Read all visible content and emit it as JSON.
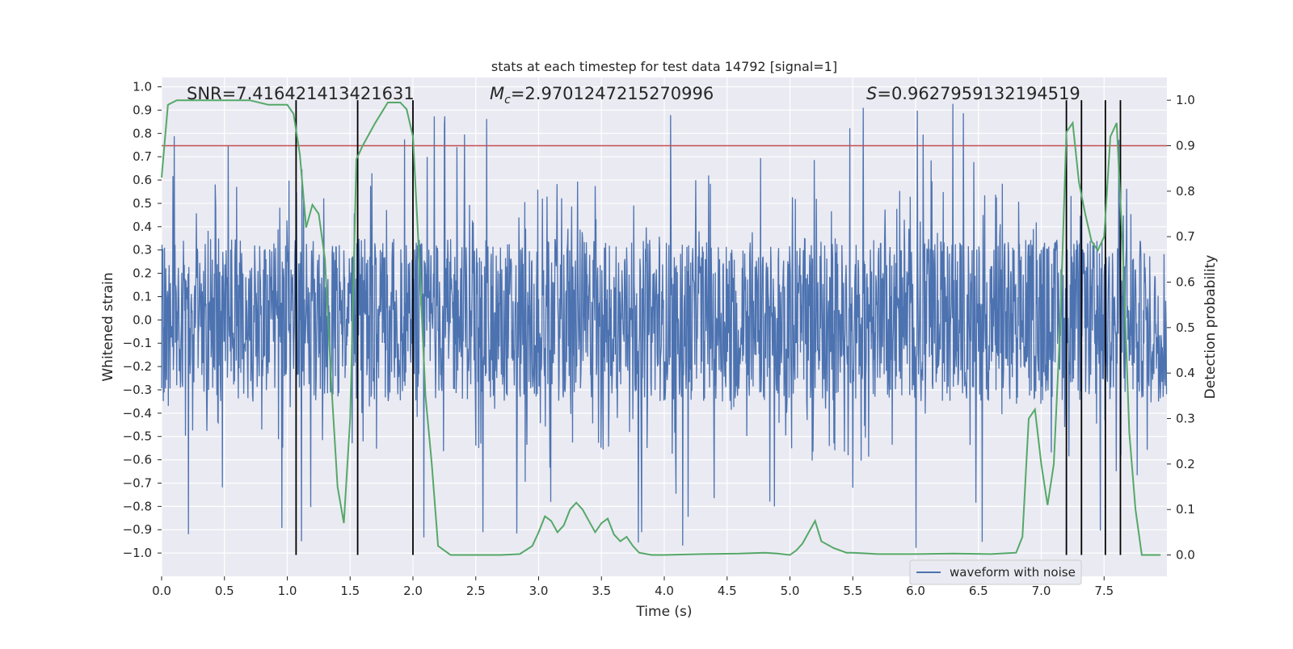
{
  "chart_data": {
    "type": "line",
    "title": "stats at each timestep for test data 14792 [signal=1]",
    "xlabel": "Time (s)",
    "ylabel": "Whitened strain",
    "y2label": "Detection probability",
    "xlim": [
      0,
      8
    ],
    "ylim": [
      -1.1,
      1.04
    ],
    "y2lim": [
      -0.047,
      1.05
    ],
    "x_ticks": [
      0.0,
      0.5,
      1.0,
      1.5,
      2.0,
      2.5,
      3.0,
      3.5,
      4.0,
      4.5,
      5.0,
      5.5,
      6.0,
      6.5,
      7.0,
      7.5
    ],
    "x_tick_labels": [
      "0.0",
      "0.5",
      "1.0",
      "1.5",
      "2.0",
      "2.5",
      "3.0",
      "3.5",
      "4.0",
      "4.5",
      "5.0",
      "5.5",
      "6.0",
      "6.5",
      "7.0",
      "7.5"
    ],
    "y_ticks": [
      1.0,
      0.9,
      0.8,
      0.7,
      0.6,
      0.5,
      0.4,
      0.3,
      0.2,
      0.1,
      0.0,
      -0.1,
      -0.2,
      -0.3,
      -0.4,
      -0.5,
      -0.6,
      -0.7,
      -0.8,
      -0.9,
      -1.0
    ],
    "y_tick_labels": [
      "1.0",
      "0.9",
      "0.8",
      "0.7",
      "0.6",
      "0.5",
      "0.4",
      "0.3",
      "0.2",
      "0.1",
      "0.0",
      "−0.1",
      "−0.2",
      "−0.3",
      "−0.4",
      "−0.5",
      "−0.6",
      "−0.7",
      "−0.8",
      "−0.9",
      "−1.0"
    ],
    "y2_ticks": [
      1.0,
      0.9,
      0.8,
      0.7,
      0.6,
      0.5,
      0.4,
      0.3,
      0.2,
      0.1,
      0.0
    ],
    "y2_tick_labels": [
      "1.0",
      "0.9",
      "0.8",
      "0.7",
      "0.6",
      "0.5",
      "0.4",
      "0.3",
      "0.2",
      "0.1",
      "0.0"
    ],
    "grid": true,
    "background": "#eaeaf2",
    "series": [
      {
        "name": "waveform with noise",
        "axis": "left",
        "color": "#4c72b0",
        "description": "dense noisy whitened strain, core amplitude about ±0.35 with spikes up to about 0.95 and down to about −1.0",
        "core_amplitude": 0.35,
        "spike_max": 0.95,
        "spike_min": -1.0
      },
      {
        "axis": "right",
        "color": "#55a868",
        "x": [
          0.0,
          0.05,
          0.12,
          0.3,
          0.5,
          0.7,
          0.85,
          1.0,
          1.05,
          1.1,
          1.15,
          1.2,
          1.25,
          1.3,
          1.35,
          1.4,
          1.45,
          1.5,
          1.55,
          1.6,
          1.7,
          1.8,
          1.9,
          1.95,
          2.0,
          2.05,
          2.1,
          2.15,
          2.2,
          2.3,
          2.5,
          2.7,
          2.85,
          2.95,
          3.0,
          3.05,
          3.1,
          3.15,
          3.2,
          3.25,
          3.3,
          3.35,
          3.4,
          3.45,
          3.5,
          3.55,
          3.6,
          3.65,
          3.7,
          3.75,
          3.8,
          3.9,
          4.0,
          4.3,
          4.6,
          4.8,
          4.9,
          5.0,
          5.05,
          5.1,
          5.2,
          5.25,
          5.35,
          5.45,
          5.5,
          5.7,
          6.0,
          6.3,
          6.6,
          6.8,
          6.85,
          6.9,
          6.95,
          7.0,
          7.05,
          7.1,
          7.15,
          7.2,
          7.25,
          7.3,
          7.35,
          7.4,
          7.45,
          7.5,
          7.55,
          7.6,
          7.65,
          7.7,
          7.75,
          7.8,
          7.9,
          7.95
        ],
        "values": [
          0.83,
          0.99,
          1.0,
          1.0,
          1.0,
          1.0,
          0.99,
          0.99,
          0.97,
          0.88,
          0.72,
          0.77,
          0.75,
          0.65,
          0.38,
          0.15,
          0.07,
          0.3,
          0.87,
          0.9,
          0.95,
          0.995,
          0.995,
          0.98,
          0.92,
          0.65,
          0.35,
          0.2,
          0.02,
          0.0,
          0.0,
          0.0,
          0.002,
          0.02,
          0.05,
          0.085,
          0.075,
          0.05,
          0.065,
          0.1,
          0.115,
          0.1,
          0.075,
          0.05,
          0.07,
          0.08,
          0.045,
          0.03,
          0.04,
          0.02,
          0.005,
          0.0,
          0.0,
          0.002,
          0.003,
          0.005,
          0.003,
          0.0,
          0.01,
          0.025,
          0.075,
          0.03,
          0.015,
          0.005,
          0.005,
          0.002,
          0.002,
          0.003,
          0.002,
          0.005,
          0.04,
          0.3,
          0.32,
          0.2,
          0.11,
          0.2,
          0.5,
          0.93,
          0.95,
          0.82,
          0.75,
          0.69,
          0.67,
          0.7,
          0.92,
          0.95,
          0.66,
          0.27,
          0.1,
          0.0,
          0.0,
          0.0
        ]
      }
    ],
    "threshold": {
      "value": 0.9,
      "axis": "right",
      "color": "#c44e52"
    },
    "vlines": [
      1.07,
      1.56,
      2.0,
      7.2,
      7.32,
      7.51,
      7.63
    ],
    "vline_color": "#000000",
    "annotations": [
      {
        "text": "SNR=7.416421413421631"
      },
      {
        "text": "M_c=2.9701247215270996",
        "symbol": "M",
        "subscript": "c",
        "value": "=2.9701247215270996"
      },
      {
        "text": "S=0.9627959132194519",
        "symbol": "S",
        "value": "=0.9627959132194519"
      }
    ],
    "legend": {
      "placement": "lower right",
      "entries": [
        "waveform with noise"
      ]
    }
  }
}
